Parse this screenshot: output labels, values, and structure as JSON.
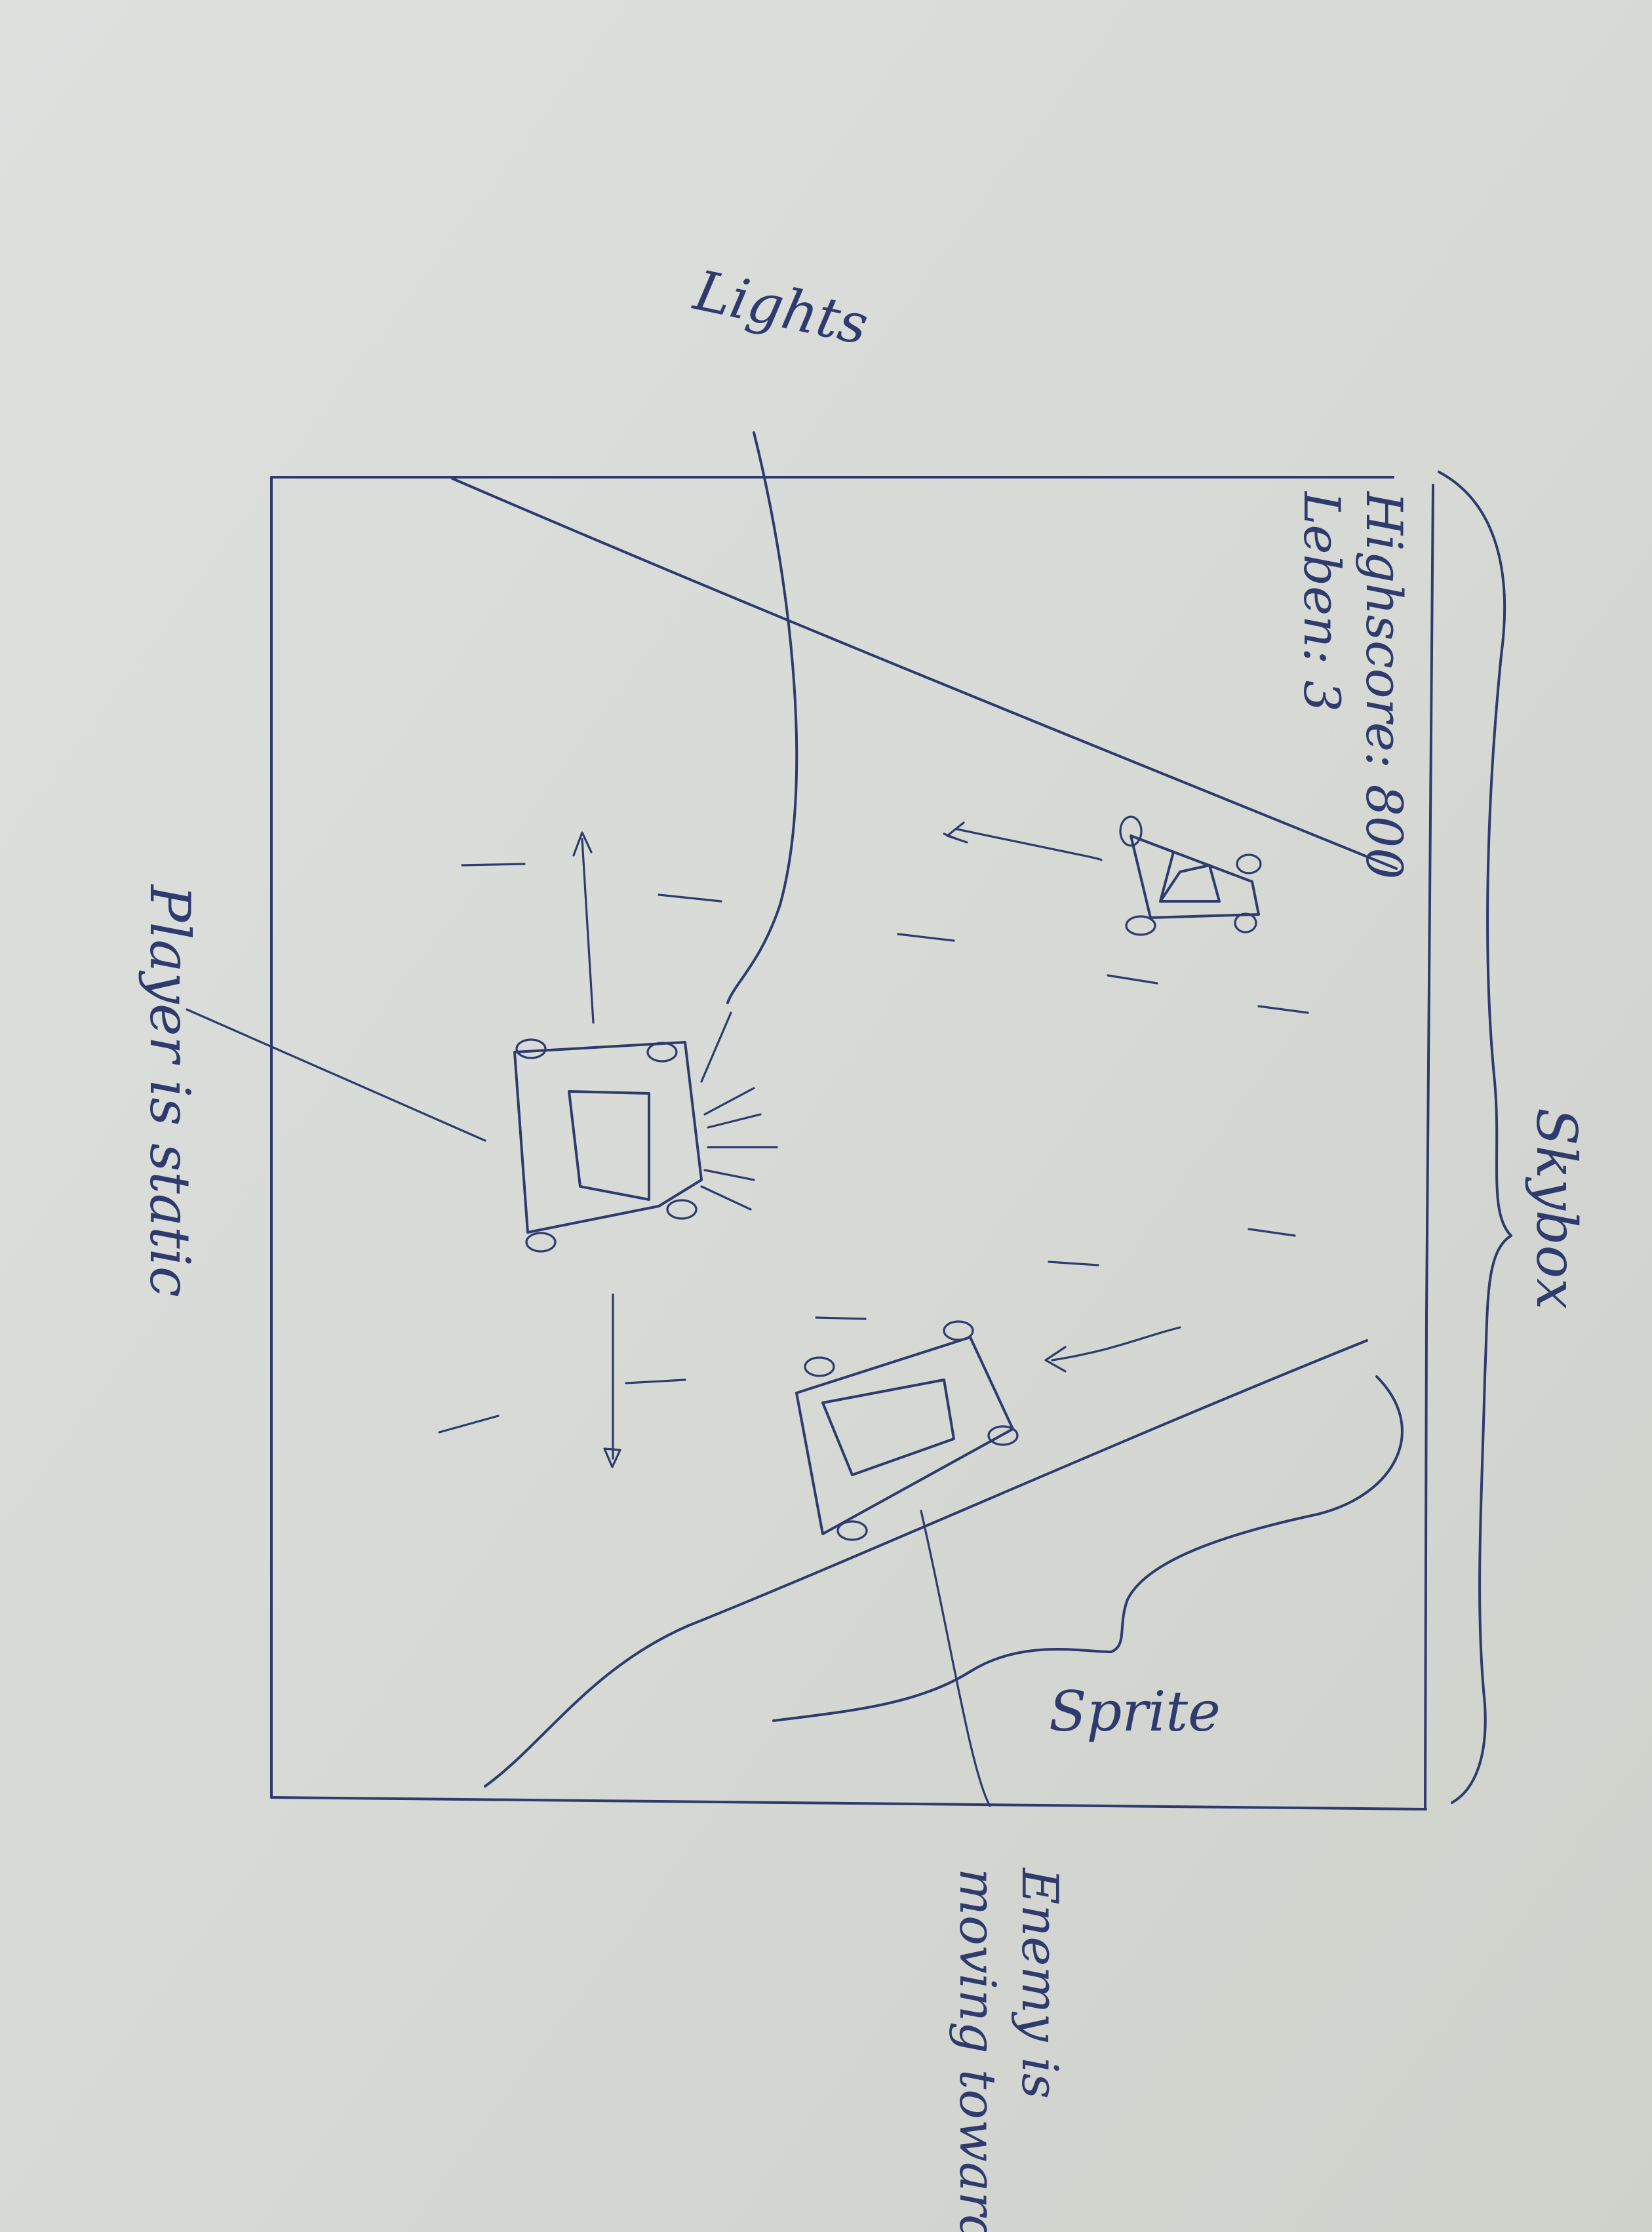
{
  "labels": {
    "lights": "Lights",
    "highscore": "Highscore: 800",
    "lives": "Leben: 3",
    "player_note": "Player is static",
    "skybox": "Skybox",
    "sprite": "Sprite",
    "enemy_note_line1": "Enemy is",
    "enemy_note_line2": "moving towards"
  },
  "colors": {
    "paper": "#d9dcd8",
    "ink": "#2f3a6e"
  }
}
